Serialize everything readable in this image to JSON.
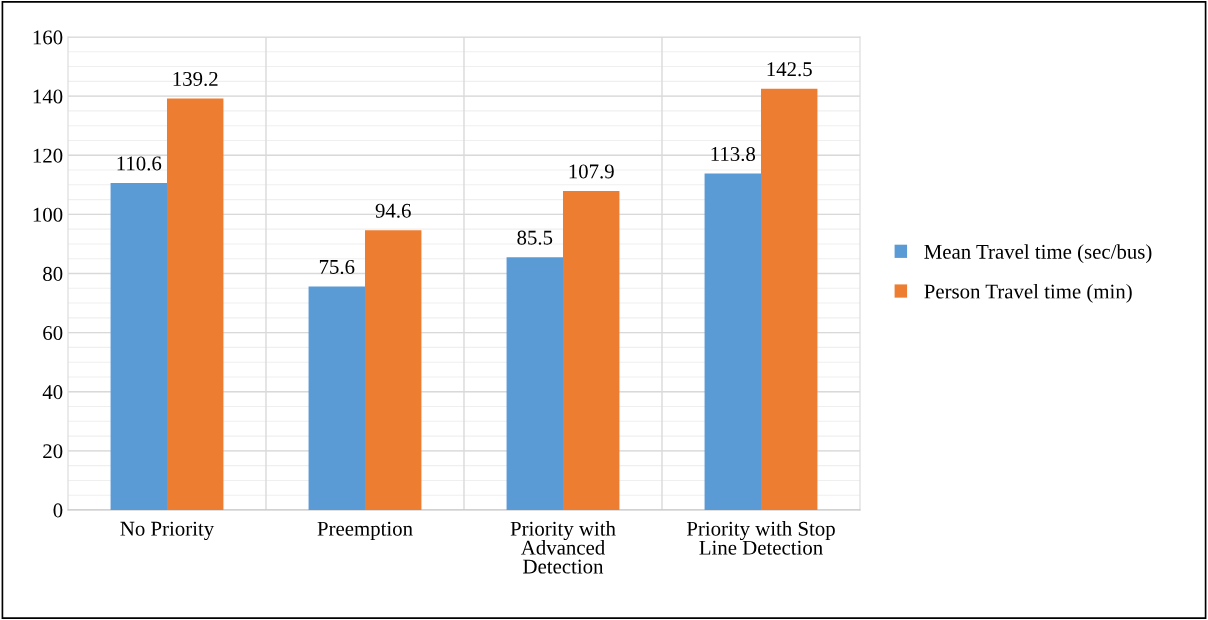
{
  "chart_data": {
    "type": "bar",
    "categories": [
      "No Priority",
      "Preemption",
      "Priority with Advanced Detection",
      "Priority with Stop Line Detection"
    ],
    "series": [
      {
        "name": "Mean Travel time (sec/bus)",
        "color": "#5b9bd5",
        "values": [
          110.6,
          75.6,
          85.5,
          113.8
        ]
      },
      {
        "name": "Person Travel time (min)",
        "color": "#ed7d31",
        "values": [
          139.2,
          94.6,
          107.9,
          142.5
        ]
      }
    ],
    "ylim": [
      0,
      160
    ],
    "yticks": [
      0,
      20,
      40,
      60,
      80,
      100,
      120,
      140,
      160
    ],
    "grid": true,
    "legend": "right",
    "data_labels": true
  }
}
